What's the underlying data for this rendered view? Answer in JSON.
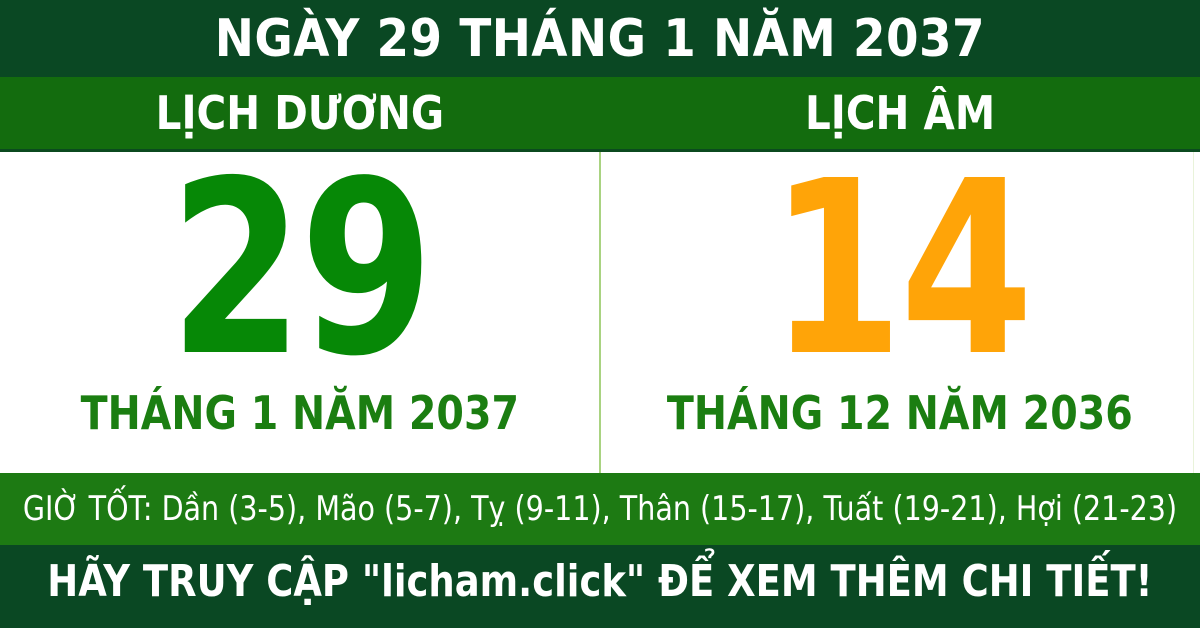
{
  "colors": {
    "dark_green": "#0a4823",
    "band_green": "#136c0e",
    "band_edge_green": "#0b4a1f",
    "hours_band_green": "#1d7a13",
    "solar_day_green": "#068806",
    "lunar_day_orange": "#ffa408",
    "month_green": "#1b7e11",
    "divider_green": "#a9d381",
    "faint_edge_green": "#e9f3da",
    "text_white": "#ffffff"
  },
  "header": {
    "title": "NGÀY 29 THÁNG 1 NĂM 2037"
  },
  "label_band": {
    "solar_label": "LỊCH DƯƠNG",
    "lunar_label": "LỊCH ÂM"
  },
  "solar_panel": {
    "day": "29",
    "month_year": "THÁNG 1 NĂM 2037"
  },
  "lunar_panel": {
    "day": "14",
    "month_year": "THÁNG 12 NĂM 2036"
  },
  "good_hours": {
    "text": "GIỜ TỐT: Dần (3-5), Mão (5-7), Tỵ (9-11), Thân (15-17), Tuất (19-21), Hợi (21-23)"
  },
  "footer": {
    "text": "HÃY TRUY CẬP \"licham.click\" ĐỂ XEM THÊM CHI TIẾT!"
  }
}
